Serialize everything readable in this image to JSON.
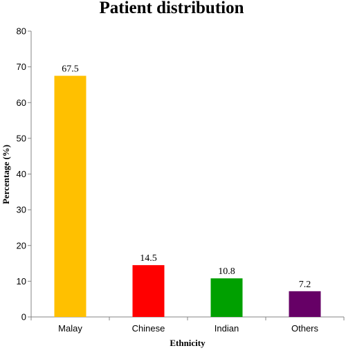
{
  "chart_data": {
    "type": "bar",
    "title": "Patient distribution",
    "xlabel": "Ethnicity",
    "ylabel": "Percentage (%)",
    "categories": [
      "Malay",
      "Chinese",
      "Indian",
      "Others"
    ],
    "values": [
      67.5,
      14.5,
      10.8,
      7.2
    ],
    "data_labels": [
      "67.5",
      "14.5",
      "10.8",
      "7.2"
    ],
    "bar_colors": [
      "#FFC000",
      "#FF0000",
      "#00A000",
      "#660066"
    ],
    "ylim": [
      0,
      80
    ],
    "yticks": [
      0,
      10,
      20,
      30,
      40,
      50,
      60,
      70,
      80
    ],
    "grid": false,
    "legend": "none"
  }
}
